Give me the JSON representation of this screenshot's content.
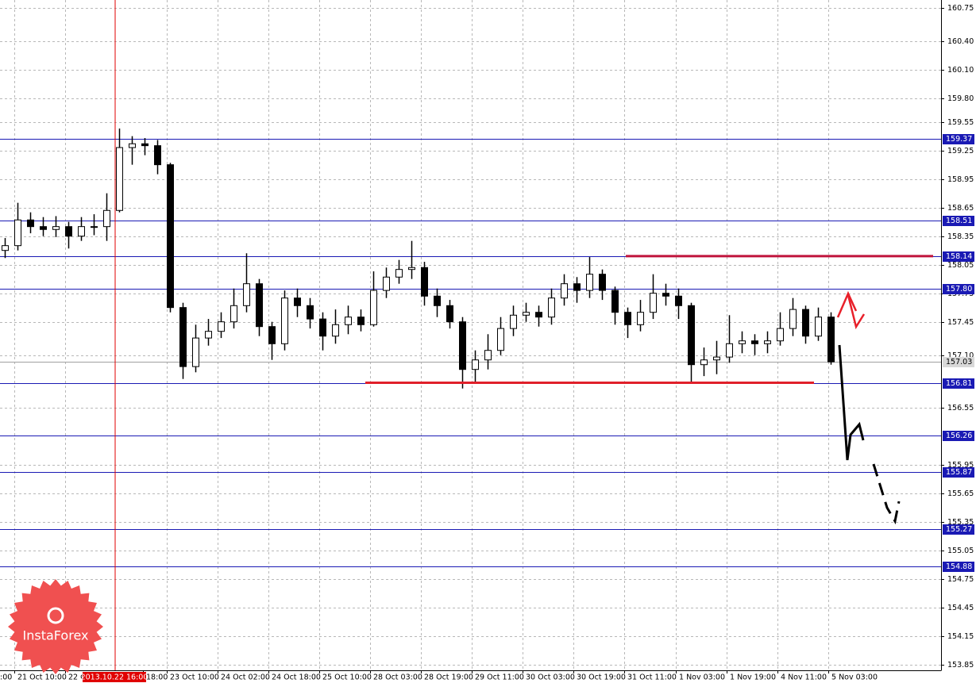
{
  "chart_data": {
    "type": "candlestick",
    "x_labels": [
      ":00",
      "21 Oct 10:00",
      "22 O",
      "18:00",
      "23 Oct 10:00",
      "24 Oct 02:00",
      "24 Oct 18:00",
      "25 Oct 10:00",
      "28 Oct 03:00",
      "28 Oct 19:00",
      "29 Oct 11:00",
      "30 Oct 03:00",
      "30 Oct 19:00",
      "31 Oct 11:00",
      "1 Nov 03:00",
      "1 Nov 19:00",
      "4 Nov 11:00",
      "5 Nov 03:00"
    ],
    "marker_label": "2013.10.22 16:00",
    "open": [
      158.2,
      158.25,
      158.52,
      158.45,
      158.42,
      158.45,
      158.35,
      158.45,
      158.45,
      158.62,
      159.28,
      159.32,
      159.3,
      159.1,
      157.6,
      156.98,
      157.28,
      157.35,
      157.45,
      157.62,
      157.85,
      157.4,
      157.22,
      157.7,
      157.62,
      157.48,
      157.3,
      157.42,
      157.5,
      157.42,
      157.78,
      157.92,
      158.0,
      158.02,
      157.72,
      157.62,
      157.45,
      156.95,
      157.05,
      157.15,
      157.38,
      157.52,
      157.55,
      157.5,
      157.7,
      157.85,
      157.78,
      157.95,
      157.78,
      157.55,
      157.42,
      157.55,
      157.75,
      157.72,
      157.62,
      157.0,
      157.05,
      157.08,
      157.22,
      157.25,
      157.22,
      157.25,
      157.38,
      157.58,
      157.3,
      157.5
    ],
    "high": [
      158.33,
      158.7,
      158.6,
      158.55,
      158.56,
      158.5,
      158.55,
      158.58,
      158.8,
      159.48,
      159.4,
      159.38,
      159.36,
      159.12,
      157.65,
      157.42,
      157.48,
      157.55,
      157.8,
      158.17,
      157.9,
      157.45,
      157.78,
      157.8,
      157.7,
      157.55,
      157.58,
      157.62,
      157.58,
      157.98,
      158.02,
      158.1,
      158.3,
      158.08,
      157.8,
      157.68,
      157.5,
      157.15,
      157.32,
      157.5,
      157.62,
      157.65,
      157.62,
      157.8,
      157.95,
      157.92,
      158.13,
      158.0,
      157.82,
      157.6,
      157.68,
      157.95,
      157.85,
      157.8,
      157.65,
      157.18,
      157.25,
      157.52,
      157.35,
      157.32,
      157.35,
      157.55,
      157.7,
      157.62,
      157.6,
      157.55
    ],
    "low": [
      158.12,
      158.2,
      158.38,
      158.35,
      158.34,
      158.22,
      158.3,
      158.36,
      158.3,
      158.6,
      159.1,
      159.2,
      159.0,
      157.55,
      156.85,
      156.92,
      157.2,
      157.28,
      157.38,
      157.55,
      157.3,
      157.05,
      157.15,
      157.5,
      157.38,
      157.15,
      157.22,
      157.32,
      157.35,
      157.4,
      157.7,
      157.85,
      157.9,
      157.62,
      157.5,
      157.38,
      156.75,
      156.82,
      156.95,
      157.1,
      157.3,
      157.45,
      157.4,
      157.42,
      157.62,
      157.65,
      157.7,
      157.68,
      157.42,
      157.28,
      157.35,
      157.48,
      157.62,
      157.48,
      156.82,
      156.88,
      156.9,
      157.02,
      157.12,
      157.1,
      157.12,
      157.2,
      157.3,
      157.22,
      157.25,
      157.0
    ],
    "close": [
      158.25,
      158.52,
      158.45,
      158.42,
      158.45,
      158.35,
      158.45,
      158.45,
      158.62,
      159.28,
      159.32,
      159.3,
      159.1,
      157.6,
      156.98,
      157.28,
      157.35,
      157.45,
      157.62,
      157.85,
      157.4,
      157.22,
      157.7,
      157.62,
      157.48,
      157.3,
      157.42,
      157.5,
      157.42,
      157.78,
      157.92,
      158.0,
      158.02,
      157.72,
      157.62,
      157.45,
      156.95,
      157.05,
      157.15,
      157.38,
      157.52,
      157.55,
      157.5,
      157.7,
      157.85,
      157.78,
      157.95,
      157.78,
      157.55,
      157.42,
      157.55,
      157.75,
      157.72,
      157.62,
      157.0,
      157.05,
      157.08,
      157.22,
      157.25,
      157.22,
      157.25,
      157.38,
      157.58,
      157.3,
      157.5,
      157.03
    ],
    "ylim": [
      153.79,
      160.83
    ],
    "yticks": [
      160.75,
      {
        "value": 160.4,
        "label": "160.40"
      },
      {
        "value": 160.1,
        "label": "160.10"
      },
      {
        "value": 159.8,
        "label": "159.80"
      },
      159.55,
      159.25,
      158.95,
      158.65,
      158.35,
      158.05,
      157.75,
      157.45,
      {
        "value": 157.1,
        "label": "157.10"
      },
      156.55,
      155.95,
      155.65,
      155.35,
      155.05,
      154.75,
      154.45,
      154.15,
      153.85
    ],
    "grid": true,
    "levels": [
      159.37,
      158.51,
      158.14,
      {
        "value": 157.8,
        "label": "157.80"
      },
      156.81,
      156.26,
      155.87,
      155.27,
      154.88
    ],
    "level_color": "#1a1ab4",
    "current_price": 157.03,
    "trend_lines": [
      {
        "value": 158.14,
        "color": "#c0143c"
      },
      {
        "value": 156.81,
        "color": "#e0202a"
      }
    ],
    "candle_color": "#000000",
    "watermark": "InstaForex"
  }
}
